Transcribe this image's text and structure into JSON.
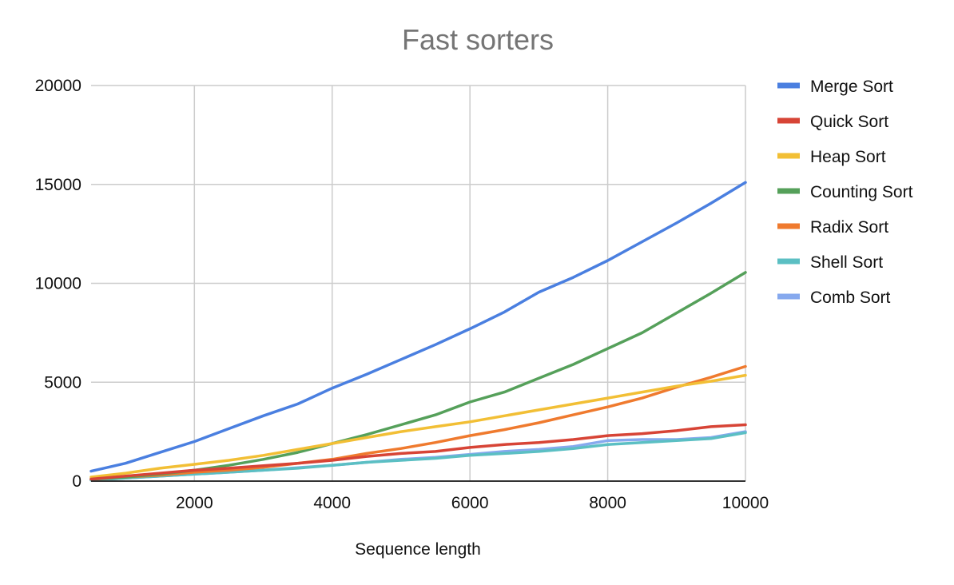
{
  "chart_data": {
    "type": "line",
    "title": "Fast sorters",
    "xlabel": "Sequence length",
    "ylabel": "",
    "xlim": [
      500,
      10000
    ],
    "ylim": [
      0,
      20000
    ],
    "x_ticks": [
      "2000",
      "4000",
      "6000",
      "8000",
      "10000"
    ],
    "y_ticks": [
      "0",
      "5000",
      "10000",
      "15000",
      "20000"
    ],
    "grid": true,
    "legend_position": "right",
    "x": [
      500,
      1000,
      1500,
      2000,
      2500,
      3000,
      3500,
      4000,
      4500,
      5000,
      5500,
      6000,
      6500,
      7000,
      7500,
      8000,
      8500,
      9000,
      9500,
      10000
    ],
    "series": [
      {
        "name": "Merge Sort",
        "color": "#4a7fe0",
        "values": [
          500,
          900,
          1450,
          2000,
          2650,
          3300,
          3900,
          4700,
          5400,
          6150,
          6900,
          7700,
          8550,
          9550,
          10300,
          11150,
          12100,
          13050,
          14050,
          15100
        ]
      },
      {
        "name": "Quick Sort",
        "color": "#d74436",
        "values": [
          100,
          250,
          400,
          550,
          650,
          780,
          900,
          1050,
          1250,
          1400,
          1500,
          1700,
          1850,
          1950,
          2100,
          2300,
          2400,
          2550,
          2750,
          2850
        ]
      },
      {
        "name": "Heap Sort",
        "color": "#f2bf35",
        "values": [
          200,
          400,
          650,
          850,
          1050,
          1300,
          1600,
          1900,
          2200,
          2500,
          2750,
          3000,
          3300,
          3600,
          3900,
          4200,
          4500,
          4800,
          5050,
          5350
        ]
      },
      {
        "name": "Counting Sort",
        "color": "#55a05a",
        "values": [
          100,
          200,
          350,
          550,
          800,
          1100,
          1450,
          1900,
          2350,
          2850,
          3350,
          4000,
          4500,
          5200,
          5900,
          6700,
          7500,
          8500,
          9500,
          10550
        ]
      },
      {
        "name": "Radix Sort",
        "color": "#ef7a2e",
        "values": [
          100,
          200,
          300,
          450,
          550,
          700,
          900,
          1100,
          1400,
          1650,
          1950,
          2300,
          2600,
          2950,
          3350,
          3750,
          4200,
          4750,
          5250,
          5800
        ]
      },
      {
        "name": "Shell Sort",
        "color": "#5bbfc3",
        "values": [
          50,
          150,
          250,
          350,
          450,
          550,
          650,
          800,
          950,
          1050,
          1150,
          1300,
          1400,
          1500,
          1650,
          1850,
          1950,
          2050,
          2150,
          2450
        ]
      },
      {
        "name": "Comb Sort",
        "color": "#86a9ee",
        "values": [
          50,
          150,
          250,
          350,
          450,
          550,
          680,
          800,
          950,
          1100,
          1200,
          1350,
          1500,
          1600,
          1750,
          2050,
          2100,
          2100,
          2200,
          2500
        ]
      }
    ]
  }
}
